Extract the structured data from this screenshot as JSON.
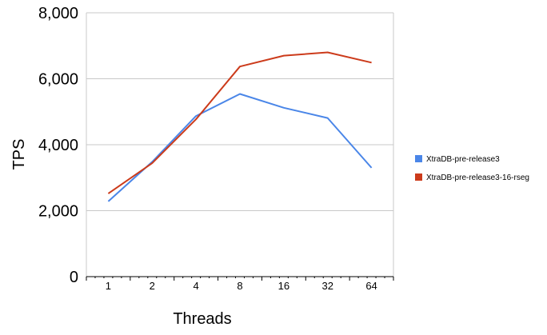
{
  "chart_data": {
    "type": "line",
    "categories": [
      "1",
      "2",
      "4",
      "8",
      "16",
      "32",
      "64"
    ],
    "series": [
      {
        "name": "XtraDB-pre-release3",
        "values": [
          2280,
          3480,
          4870,
          5540,
          5120,
          4810,
          3300
        ]
      },
      {
        "name": "XtraDB-pre-release3-16-rseg",
        "values": [
          2520,
          3440,
          4770,
          6370,
          6700,
          6800,
          6490
        ]
      }
    ],
    "title": "",
    "xlabel": "Threads",
    "ylabel": "TPS",
    "ylim": [
      0,
      8000
    ],
    "yticks": [
      "0",
      "2,000",
      "4,000",
      "6,000",
      "8,000"
    ],
    "grid": true,
    "legend_position": "right",
    "colors": [
      "#4a86e8",
      "#cc3b1b"
    ]
  }
}
